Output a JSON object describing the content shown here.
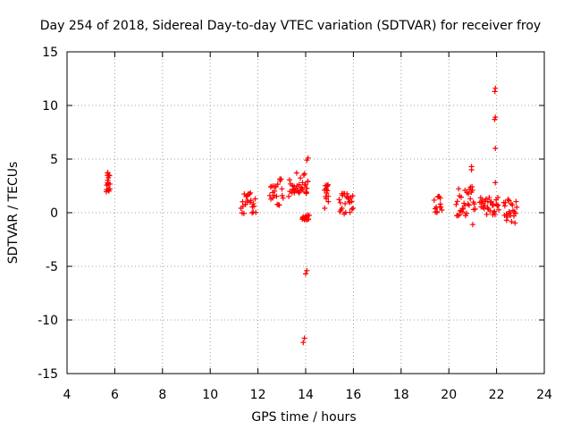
{
  "chart_data": {
    "type": "scatter",
    "title": "Day 254 of 2018, Sidereal Day-to-day VTEC variation (SDTVAR) for receiver froy",
    "xlabel": "GPS time / hours",
    "ylabel": "SDTVAR / TECUs",
    "xlim": [
      4,
      24
    ],
    "ylim": [
      -15,
      15
    ],
    "x_ticks": [
      "4",
      "6",
      "8",
      "10",
      "12",
      "14",
      "16",
      "18",
      "20",
      "22",
      "24"
    ],
    "y_ticks": [
      "15",
      "10",
      "5",
      "0",
      "-5",
      "-10",
      "-15"
    ],
    "grid": true,
    "marker": "+",
    "series": [
      {
        "name": "froy",
        "color": "#ff0000",
        "clusters": [
          {
            "x": [
              5.65,
              5.8
            ],
            "y": [
              1.9,
              3.8
            ]
          },
          {
            "x": [
              11.3,
              11.9
            ],
            "y": [
              -0.1,
              2.0
            ]
          },
          {
            "x": [
              12.5,
              13.05
            ],
            "y": [
              0.7,
              3.2
            ]
          },
          {
            "x": [
              13.3,
              14.1
            ],
            "y": [
              1.5,
              3.8
            ]
          },
          {
            "x": [
              13.85,
              14.15
            ],
            "y": [
              -0.7,
              -0.2
            ]
          },
          {
            "x": [
              14.8,
              14.95
            ],
            "y": [
              0.4,
              2.7
            ]
          },
          {
            "x": [
              15.4,
              16.0
            ],
            "y": [
              -0.3,
              1.8
            ]
          },
          {
            "x": [
              19.4,
              19.7
            ],
            "y": [
              0.0,
              2.1
            ]
          },
          {
            "x": [
              20.3,
              21.1
            ],
            "y": [
              -0.3,
              2.6
            ]
          },
          {
            "x": [
              21.3,
              22.1
            ],
            "y": [
              -0.2,
              1.5
            ]
          },
          {
            "x": [
              22.3,
              22.85
            ],
            "y": [
              -1.1,
              1.3
            ]
          }
        ],
        "points": [
          {
            "x": 5.7,
            "y": 3.7
          },
          {
            "x": 5.75,
            "y": 3.5
          },
          {
            "x": 5.7,
            "y": 2.8
          },
          {
            "x": 5.72,
            "y": 2.1
          },
          {
            "x": 14.1,
            "y": 5.1
          },
          {
            "x": 14.05,
            "y": 4.9
          },
          {
            "x": 14.0,
            "y": 2.6
          },
          {
            "x": 14.02,
            "y": 1.8
          },
          {
            "x": 14.05,
            "y": -5.4
          },
          {
            "x": 14.0,
            "y": -5.7
          },
          {
            "x": 13.95,
            "y": -11.7
          },
          {
            "x": 13.9,
            "y": -12.1
          },
          {
            "x": 20.95,
            "y": 4.3
          },
          {
            "x": 20.95,
            "y": 4.0
          },
          {
            "x": 21.0,
            "y": -1.1
          },
          {
            "x": 21.95,
            "y": 11.6
          },
          {
            "x": 21.93,
            "y": 11.3
          },
          {
            "x": 21.95,
            "y": 8.9
          },
          {
            "x": 21.92,
            "y": 8.7
          },
          {
            "x": 21.95,
            "y": 6.0
          },
          {
            "x": 21.95,
            "y": 2.8
          }
        ]
      }
    ]
  }
}
